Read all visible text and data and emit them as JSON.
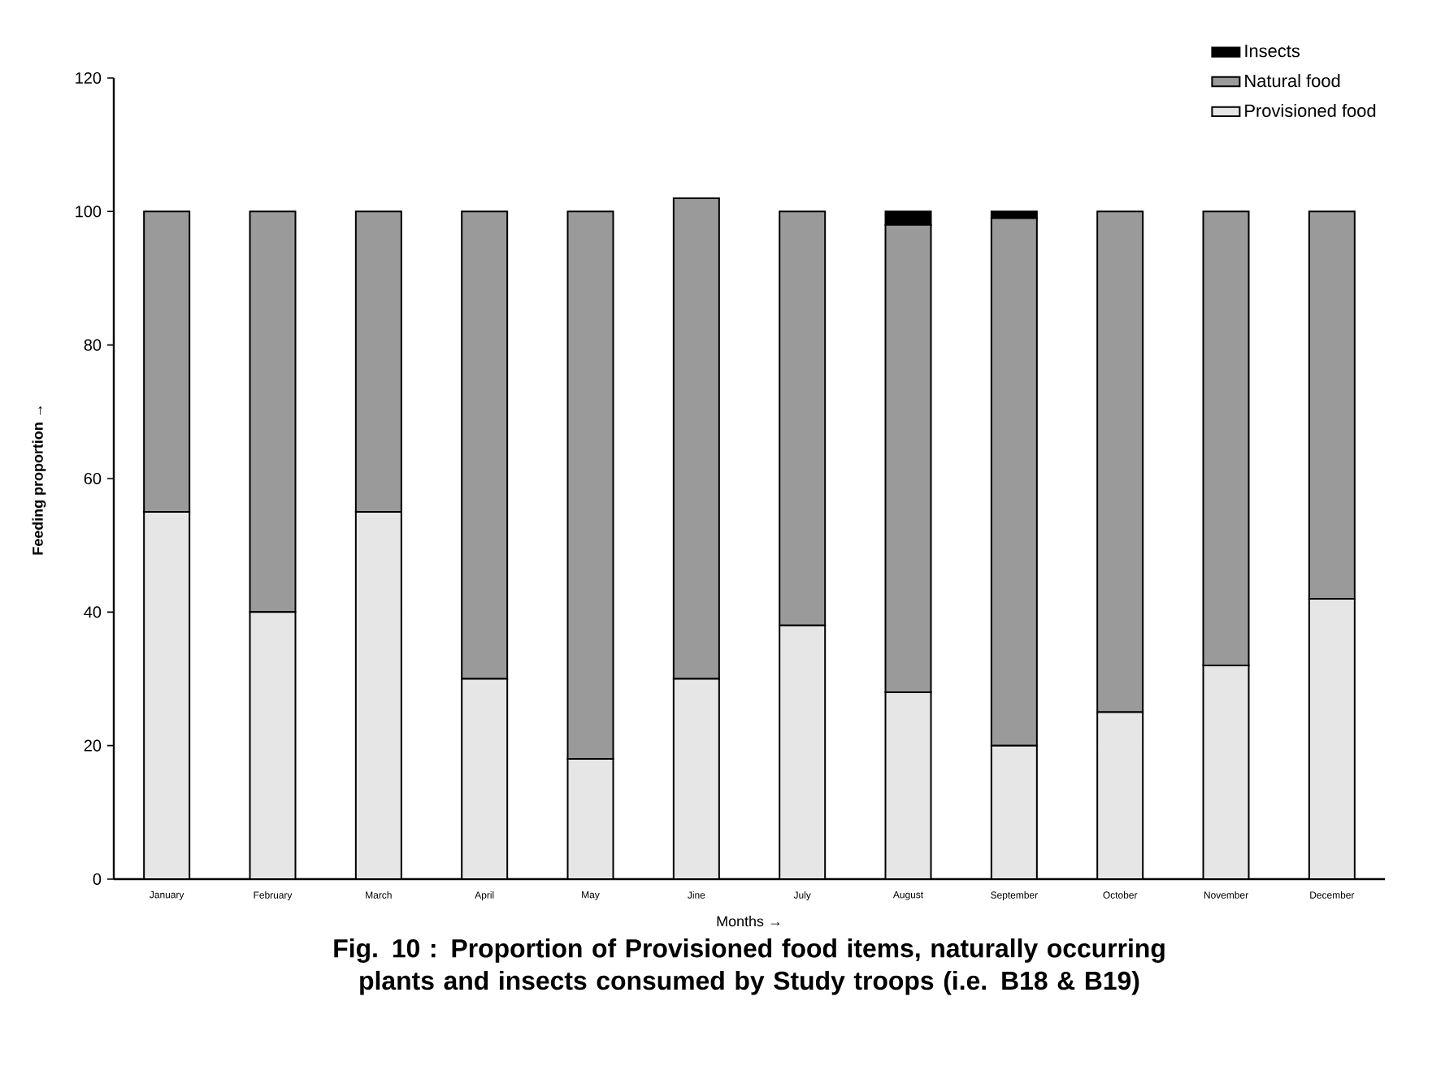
{
  "chart_data": {
    "type": "bar",
    "stacked": true,
    "title": "Fig. 10 : Proportion of Provisioned food items, naturally occurring plants and insects consumed by Study troops (i.e. B18 & B19)",
    "xlabel": "Months →",
    "ylabel": "Feeding proportion →",
    "categories": [
      "January",
      "February",
      "March",
      "April",
      "May",
      "Jine",
      "July",
      "August",
      "September",
      "October",
      "November",
      "December"
    ],
    "series": [
      {
        "name": "Provisioned food",
        "color": "#e6e6e6",
        "values": [
          55,
          40,
          55,
          30,
          18,
          30,
          38,
          28,
          20,
          25,
          32,
          42
        ]
      },
      {
        "name": "Natural food",
        "color": "#9a9a9a",
        "values": [
          45,
          60,
          45,
          70,
          82,
          72,
          62,
          70,
          79,
          75,
          68,
          58
        ]
      },
      {
        "name": "Insects",
        "color": "#000000",
        "values": [
          0,
          0,
          0,
          0,
          0,
          0,
          0,
          2,
          1,
          0,
          0,
          0
        ]
      }
    ],
    "ylim": [
      0,
      120
    ],
    "yticks": [
      0,
      20,
      40,
      60,
      80,
      100,
      120
    ],
    "legend": "top right",
    "grid": false
  }
}
